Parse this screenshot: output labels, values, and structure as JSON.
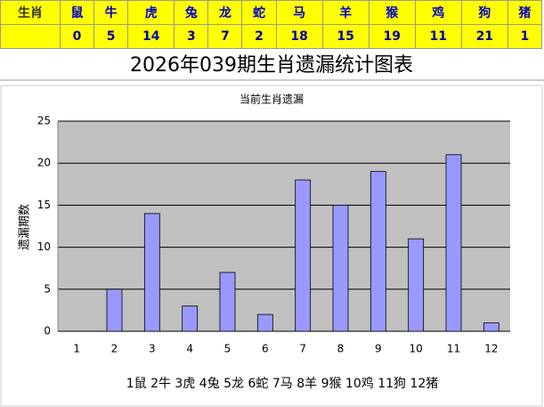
{
  "table": {
    "header": "生肖",
    "zodiacs": [
      "鼠",
      "牛",
      "虎",
      "兔",
      "龙",
      "蛇",
      "马",
      "羊",
      "猴",
      "鸡",
      "狗",
      "猪"
    ]
  },
  "chart_data": {
    "type": "bar",
    "title": "2026年039期生肖遗漏统计图表",
    "subtitle": "当前生肖遗漏",
    "y_label": "遗漏期数",
    "categories": [
      "1",
      "2",
      "3",
      "4",
      "5",
      "6",
      "7",
      "8",
      "9",
      "10",
      "11",
      "12"
    ],
    "values": [
      0,
      5,
      14,
      3,
      7,
      2,
      18,
      15,
      19,
      11,
      21,
      1
    ],
    "color": "#9999ff",
    "ylim": [
      0,
      25
    ],
    "yticks": [
      0,
      5,
      10,
      15,
      20,
      25
    ],
    "grid": true,
    "annotation": "1鼠 2牛 3虎 4兔 5龙 6蛇 7马 8羊 9猴 10鸡 11狗 12猪"
  }
}
